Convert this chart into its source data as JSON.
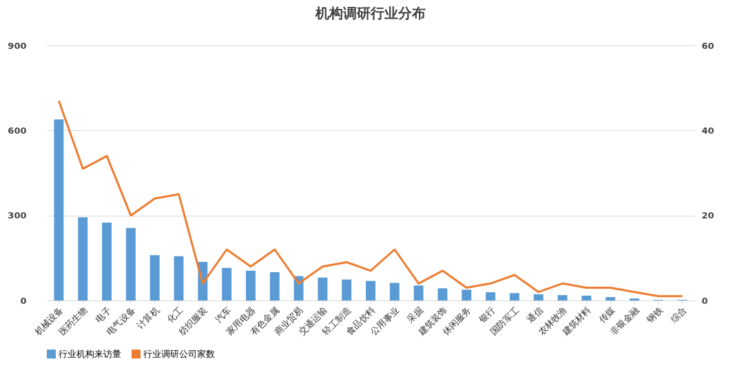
{
  "chart_data": {
    "type": "bar",
    "title": "机构调研行业分布",
    "categories": [
      "机械设备",
      "医药生物",
      "电子",
      "电气设备",
      "计算机",
      "化工",
      "纺织服装",
      "汽车",
      "家用电器",
      "有色金属",
      "商业贸易",
      "交通运输",
      "轻工制造",
      "食品饮料",
      "公用事业",
      "采掘",
      "建筑装饰",
      "休闲服务",
      "银行",
      "国防军工",
      "通信",
      "农林牧渔",
      "建筑材料",
      "传媒",
      "非银金融",
      "钢铁",
      "综合"
    ],
    "series": [
      {
        "name": "行业机构来访量",
        "color": "#5b9bd5",
        "values": [
          639,
          294,
          275,
          256,
          160,
          156,
          136,
          115,
          105,
          100,
          86,
          81,
          74,
          69,
          62,
          53,
          43,
          38,
          29,
          26,
          22,
          19,
          17,
          12,
          7,
          2,
          2
        ]
      },
      {
        "name": "行业调研公司家数",
        "type": "line",
        "axis": "y2",
        "color": "#ed7d31",
        "values": [
          47,
          31,
          34,
          20,
          24,
          25,
          4,
          12,
          8,
          12,
          4,
          8,
          9,
          7,
          12,
          4,
          7,
          3,
          4,
          6,
          2,
          4,
          3,
          3,
          2,
          1,
          1
        ]
      }
    ],
    "ylim": [
      0,
      900
    ],
    "yticks": [
      0,
      300,
      600,
      900
    ],
    "y2lim": [
      0,
      60
    ],
    "y2ticks": [
      0,
      20,
      40,
      60
    ],
    "grid": "y",
    "legend": "bottom"
  }
}
